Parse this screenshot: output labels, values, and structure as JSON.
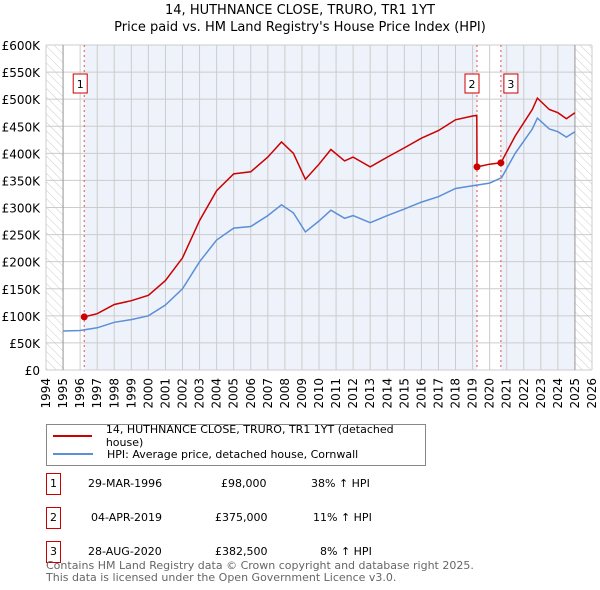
{
  "title": "14, HUTHNANCE CLOSE, TRURO, TR1 1YT",
  "subtitle": "Price paid vs. HM Land Registry's House Price Index (HPI)",
  "chart_data": {
    "type": "line",
    "title": "14, HUTHNANCE CLOSE, TRURO, TR1 1YT",
    "subtitle": "Price paid vs. HM Land Registry's House Price Index (HPI)",
    "xlim": [
      1994,
      2026
    ],
    "ylim": [
      0,
      600000
    ],
    "x_ticks": [
      "1994",
      "1995",
      "1996",
      "1997",
      "1998",
      "1999",
      "2000",
      "2001",
      "2002",
      "2003",
      "2004",
      "2005",
      "2006",
      "2007",
      "2008",
      "2009",
      "2010",
      "2011",
      "2012",
      "2013",
      "2014",
      "2015",
      "2016",
      "2017",
      "2018",
      "2019",
      "2020",
      "2021",
      "2022",
      "2023",
      "2024",
      "2025",
      "2026"
    ],
    "y_ticks": [
      {
        "v": 0,
        "label": "£0"
      },
      {
        "v": 50000,
        "label": "£50K"
      },
      {
        "v": 100000,
        "label": "£100K"
      },
      {
        "v": 150000,
        "label": "£150K"
      },
      {
        "v": 200000,
        "label": "£200K"
      },
      {
        "v": 250000,
        "label": "£250K"
      },
      {
        "v": 300000,
        "label": "£300K"
      },
      {
        "v": 350000,
        "label": "£350K"
      },
      {
        "v": 400000,
        "label": "£400K"
      },
      {
        "v": 450000,
        "label": "£450K"
      },
      {
        "v": 500000,
        "label": "£500K"
      },
      {
        "v": 550000,
        "label": "£550K"
      },
      {
        "v": 600000,
        "label": "£600K"
      }
    ],
    "grid": true,
    "series": [
      {
        "name": "14, HUTHNANCE CLOSE, TRURO, TR1 1YT (detached house)",
        "color": "#cc0000",
        "x": [
          1996.24,
          1997,
          1998,
          1999,
          2000,
          2001,
          2002,
          2003,
          2004,
          2005,
          2006,
          2007,
          2007.8,
          2008.5,
          2009.2,
          2010,
          2010.7,
          2011.5,
          2012,
          2013,
          2014,
          2015,
          2016,
          2017,
          2018,
          2019,
          2019.25,
          2019.26,
          2020,
          2020.66,
          2021.5,
          2022.5,
          2022.8,
          2023.5,
          2024,
          2024.5,
          2025
        ],
        "y": [
          98000,
          104000,
          121000,
          128000,
          138000,
          165000,
          207000,
          276000,
          331000,
          362000,
          366000,
          393000,
          421000,
          400000,
          352000,
          380000,
          407000,
          386000,
          393000,
          375000,
          393000,
          410000,
          428000,
          442000,
          462000,
          469000,
          470000,
          375000,
          380000,
          382500,
          432000,
          481000,
          502000,
          481000,
          475000,
          464000,
          475000
        ]
      },
      {
        "name": "HPI: Average price, detached house, Cornwall",
        "color": "#5b8fd6",
        "x": [
          1995,
          1996,
          1997,
          1998,
          1999,
          2000,
          2001,
          2002,
          2003,
          2004,
          2005,
          2006,
          2007,
          2007.8,
          2008.5,
          2009.2,
          2010,
          2010.7,
          2011.5,
          2012,
          2013,
          2014,
          2015,
          2016,
          2017,
          2018,
          2019,
          2020,
          2020.7,
          2021.5,
          2022.5,
          2022.8,
          2023.5,
          2024,
          2024.5,
          2025
        ],
        "y": [
          72000,
          73000,
          78000,
          88000,
          93000,
          100000,
          120000,
          150000,
          200000,
          240000,
          262000,
          265000,
          285000,
          305000,
          290000,
          255000,
          275000,
          295000,
          280000,
          285000,
          272000,
          285000,
          297000,
          310000,
          320000,
          335000,
          340000,
          345000,
          355000,
          400000,
          445000,
          465000,
          445000,
          440000,
          430000,
          440000
        ]
      }
    ],
    "sales": [
      {
        "id": "1",
        "x": 1996.24,
        "y": 98000
      },
      {
        "id": "2",
        "x": 2019.26,
        "y": 375000
      },
      {
        "id": "3",
        "x": 2020.66,
        "y": 382500
      }
    ]
  },
  "legend": [
    {
      "label": "14, HUTHNANCE CLOSE, TRURO, TR1 1YT (detached house)",
      "color": "#cc0000"
    },
    {
      "label": "HPI: Average price, detached house, Cornwall",
      "color": "#5b8fd6"
    }
  ],
  "transactions": [
    {
      "id": "1",
      "date": "29-MAR-1996",
      "price": "£98,000",
      "hpi": "38% ↑ HPI"
    },
    {
      "id": "2",
      "date": "04-APR-2019",
      "price": "£375,000",
      "hpi": "11% ↑ HPI"
    },
    {
      "id": "3",
      "date": "28-AUG-2020",
      "price": "£382,500",
      "hpi": "8% ↑ HPI"
    }
  ],
  "footer": {
    "line1": "Contains HM Land Registry data © Crown copyright and database right 2025.",
    "line2": "This data is licensed under the Open Government Licence v3.0."
  }
}
